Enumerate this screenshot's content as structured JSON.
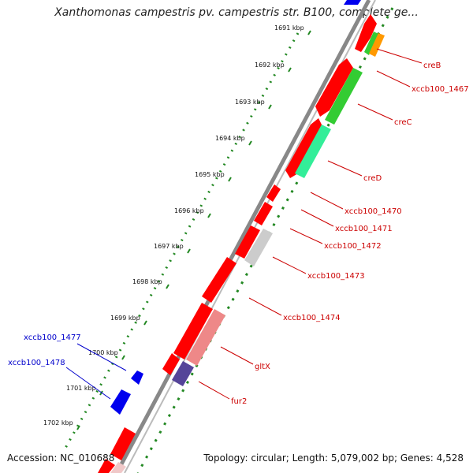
{
  "title": "Xanthomonas campestris pv. campestris str. B100, complete ge...",
  "footer": {
    "accession": "Accession: NC_010688",
    "info": "Topology: circular; Length: 5,079,002 bp; Genes: 4,528"
  },
  "kbp_labels": [
    "1691 kbp",
    "1692 kbp",
    "1693 kbp",
    "1694 kbp",
    "1695 kbp",
    "1696 kbp",
    "1697 kbp",
    "1698 kbp",
    "1699 kbp",
    "1700 kbp",
    "1701 kbp",
    "1702 kbp"
  ],
  "genes_right": [
    "creB",
    "xccb100_1467",
    "creC",
    "creD",
    "xccb100_1470",
    "xccb100_1471",
    "xccb100_1472",
    "xccb100_1473",
    "xccb100_1474",
    "gltX",
    "fur2"
  ],
  "genes_left": [
    "xccb100_1477",
    "xccb100_1478"
  ],
  "colors": {
    "forward_label": "#cc0000",
    "reverse_label": "#0000cc",
    "red_gene": "#ff0000",
    "blue_gene": "#0000ee",
    "green_gene": "#33cc33",
    "teal_gene": "#33ee99",
    "orange_gene": "#ff9900",
    "pink_gene": "#ee8888",
    "gray_gene": "#cccccc",
    "purple_gene": "#554499",
    "backbone": "#888888",
    "tick_green": "#228822"
  }
}
